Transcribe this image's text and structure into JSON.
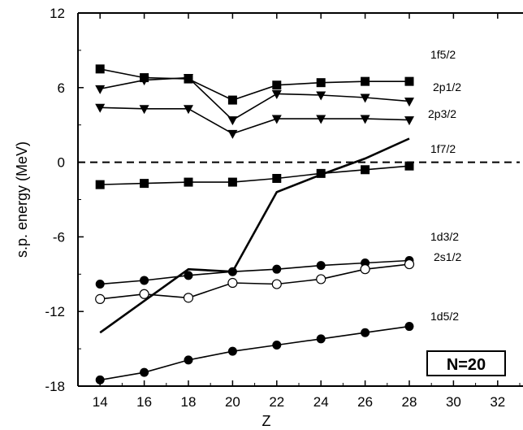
{
  "chart_data": {
    "type": "line",
    "xlabel": "Z",
    "ylabel": "s.p. energy  (MeV)",
    "xlim": [
      13,
      33
    ],
    "ylim": [
      -18,
      12
    ],
    "x_ticks": [
      14,
      16,
      18,
      20,
      22,
      24,
      26,
      28,
      30,
      32
    ],
    "y_ticks": [
      12,
      6,
      0,
      -6,
      -12,
      -18
    ],
    "reference_line": {
      "y": 0,
      "style": "dashed"
    },
    "annotation": "N=20",
    "series": [
      {
        "name": "1f5/2",
        "marker": "square",
        "x": [
          14,
          16,
          18,
          20,
          22,
          24,
          26,
          28
        ],
        "y": [
          7.5,
          6.8,
          6.7,
          5.0,
          6.2,
          6.4,
          6.5,
          6.5
        ]
      },
      {
        "name": "2p1/2",
        "marker": "triangle-down",
        "x": [
          14,
          16,
          18,
          20,
          22,
          24,
          26,
          28
        ],
        "y": [
          5.9,
          6.6,
          6.8,
          3.4,
          5.5,
          5.4,
          5.2,
          4.9
        ]
      },
      {
        "name": "2p3/2",
        "marker": "triangle-down",
        "x": [
          14,
          16,
          18,
          20,
          22,
          24,
          26,
          28
        ],
        "y": [
          4.4,
          4.3,
          4.3,
          2.3,
          3.5,
          3.5,
          3.5,
          3.4
        ]
      },
      {
        "name": "1f7/2",
        "marker": "square",
        "x": [
          14,
          16,
          18,
          20,
          22,
          24,
          26,
          28
        ],
        "y": [
          -1.8,
          -1.7,
          -1.6,
          -1.6,
          -1.3,
          -0.9,
          -0.6,
          -0.3
        ]
      },
      {
        "name": "",
        "marker": "none",
        "x": [
          14,
          18,
          20,
          22,
          24,
          26,
          28
        ],
        "y": [
          -13.7,
          -8.6,
          -8.8,
          -2.4,
          -1.0,
          0.3,
          1.9
        ]
      },
      {
        "name": "1d3/2",
        "marker": "circle-filled",
        "x": [
          14,
          16,
          18,
          20,
          22,
          24,
          26,
          28
        ],
        "y": [
          -9.8,
          -9.5,
          -9.1,
          -8.8,
          -8.6,
          -8.3,
          -8.1,
          -7.9
        ]
      },
      {
        "name": "2s1/2",
        "marker": "circle-open",
        "x": [
          14,
          16,
          18,
          20,
          22,
          24,
          26,
          28
        ],
        "y": [
          -11.0,
          -10.6,
          -10.9,
          -9.7,
          -9.8,
          -9.4,
          -8.6,
          -8.2
        ]
      },
      {
        "name": "1d5/2",
        "marker": "circle-filled",
        "x": [
          14,
          16,
          18,
          20,
          22,
          24,
          26,
          28
        ],
        "y": [
          -17.5,
          -16.9,
          -15.9,
          -15.2,
          -14.7,
          -14.2,
          -13.7,
          -13.2
        ]
      }
    ]
  }
}
